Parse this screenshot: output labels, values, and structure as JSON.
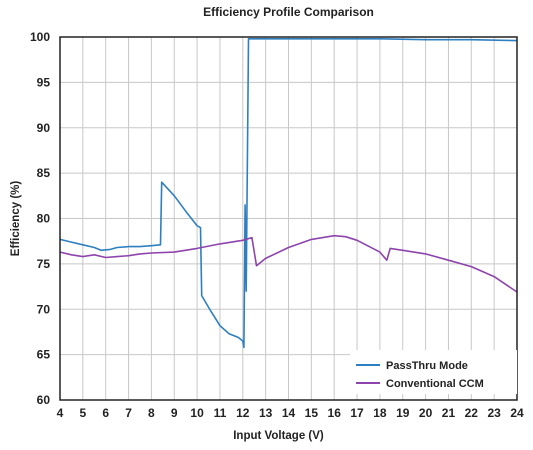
{
  "chart_data": {
    "type": "line",
    "title": "Efficiency Profile Comparison",
    "xlabel": "Input Voltage (V)",
    "ylabel": "Efficiency (%)",
    "xlim": [
      4,
      24
    ],
    "ylim": [
      60,
      100
    ],
    "xticks": [
      4,
      5,
      6,
      7,
      8,
      9,
      10,
      11,
      12,
      13,
      14,
      15,
      16,
      17,
      18,
      19,
      20,
      21,
      22,
      23,
      24
    ],
    "yticks": [
      60,
      65,
      70,
      75,
      80,
      85,
      90,
      95,
      100
    ],
    "grid": true,
    "legend_position": "bottom-right",
    "series": [
      {
        "name": "PassThru Mode",
        "color": "#2e7fc0",
        "points": [
          [
            4.0,
            77.7
          ],
          [
            4.5,
            77.4
          ],
          [
            5.0,
            77.1
          ],
          [
            5.5,
            76.8
          ],
          [
            5.8,
            76.5
          ],
          [
            6.2,
            76.6
          ],
          [
            6.5,
            76.8
          ],
          [
            7.0,
            76.9
          ],
          [
            7.5,
            76.9
          ],
          [
            8.0,
            77.0
          ],
          [
            8.4,
            77.1
          ],
          [
            8.45,
            84.0
          ],
          [
            9.0,
            82.5
          ],
          [
            9.5,
            80.8
          ],
          [
            10.0,
            79.2
          ],
          [
            10.15,
            79.0
          ],
          [
            10.2,
            71.5
          ],
          [
            10.6,
            69.8
          ],
          [
            11.0,
            68.2
          ],
          [
            11.4,
            67.3
          ],
          [
            11.8,
            66.9
          ],
          [
            12.0,
            66.5
          ],
          [
            12.05,
            65.8
          ],
          [
            12.1,
            81.5
          ],
          [
            12.15,
            72.0
          ],
          [
            12.25,
            99.8
          ],
          [
            13.0,
            99.8
          ],
          [
            14.0,
            99.8
          ],
          [
            16.0,
            99.8
          ],
          [
            18.0,
            99.8
          ],
          [
            20.0,
            99.7
          ],
          [
            22.0,
            99.7
          ],
          [
            24.0,
            99.6
          ]
        ]
      },
      {
        "name": "Conventional CCM",
        "color": "#8e44ad",
        "points": [
          [
            4.0,
            76.3
          ],
          [
            4.5,
            76.0
          ],
          [
            5.0,
            75.8
          ],
          [
            5.5,
            76.0
          ],
          [
            6.0,
            75.7
          ],
          [
            6.5,
            75.8
          ],
          [
            7.0,
            75.9
          ],
          [
            7.5,
            76.1
          ],
          [
            8.0,
            76.2
          ],
          [
            9.0,
            76.3
          ],
          [
            10.0,
            76.7
          ],
          [
            11.0,
            77.2
          ],
          [
            12.0,
            77.6
          ],
          [
            12.4,
            77.9
          ],
          [
            12.6,
            74.8
          ],
          [
            13.0,
            75.6
          ],
          [
            14.0,
            76.8
          ],
          [
            15.0,
            77.7
          ],
          [
            16.0,
            78.1
          ],
          [
            16.5,
            78.0
          ],
          [
            17.0,
            77.6
          ],
          [
            18.0,
            76.3
          ],
          [
            18.3,
            75.4
          ],
          [
            18.45,
            76.7
          ],
          [
            19.0,
            76.5
          ],
          [
            20.0,
            76.1
          ],
          [
            21.0,
            75.4
          ],
          [
            22.0,
            74.7
          ],
          [
            23.0,
            73.6
          ],
          [
            24.0,
            71.9
          ]
        ]
      }
    ]
  }
}
